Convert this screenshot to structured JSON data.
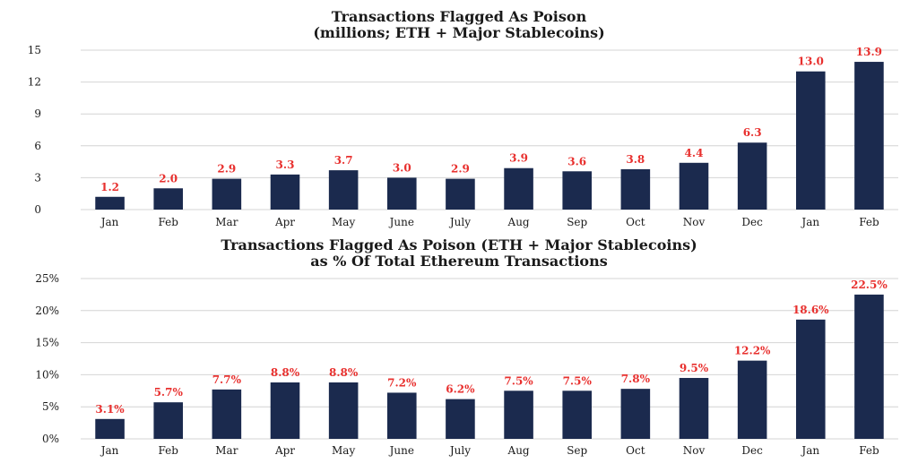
{
  "chart_data": [
    {
      "type": "bar",
      "title": "Transactions Flagged As Poison",
      "subtitle": "(millions; ETH + Major Stablecoins)",
      "categories": [
        "Jan",
        "Feb",
        "Mar",
        "Apr",
        "May",
        "June",
        "July",
        "Aug",
        "Sep",
        "Oct",
        "Nov",
        "Dec",
        "Jan",
        "Feb"
      ],
      "values": [
        1.2,
        2.0,
        2.9,
        3.3,
        3.7,
        3.0,
        2.9,
        3.9,
        3.6,
        3.8,
        4.4,
        6.3,
        13.0,
        13.9
      ],
      "data_labels": [
        "1.2",
        "2.0",
        "2.9",
        "3.3",
        "3.7",
        "3.0",
        "2.9",
        "3.9",
        "3.6",
        "3.8",
        "4.4",
        "6.3",
        "13.0",
        "13.9"
      ],
      "yticks": [
        "0",
        "3",
        "6",
        "9",
        "12",
        "15"
      ],
      "ylim": [
        0,
        15
      ],
      "grid": true,
      "colors": {
        "bar": "#1b2a4e",
        "label": "#e8302e"
      }
    },
    {
      "type": "bar",
      "title": "Transactions Flagged As Poison (ETH + Major Stablecoins)",
      "subtitle": "as % Of Total Ethereum Transactions",
      "categories": [
        "Jan",
        "Feb",
        "Mar",
        "Apr",
        "May",
        "June",
        "July",
        "Aug",
        "Sep",
        "Oct",
        "Nov",
        "Dec",
        "Jan",
        "Feb"
      ],
      "values": [
        3.1,
        5.7,
        7.7,
        8.8,
        8.8,
        7.2,
        6.2,
        7.5,
        7.5,
        7.8,
        9.5,
        12.2,
        18.6,
        22.5
      ],
      "data_labels": [
        "3.1%",
        "5.7%",
        "7.7%",
        "8.8%",
        "8.8%",
        "7.2%",
        "6.2%",
        "7.5%",
        "7.5%",
        "7.8%",
        "9.5%",
        "12.2%",
        "18.6%",
        "22.5%"
      ],
      "yticks": [
        "0%",
        "5%",
        "10%",
        "15%",
        "20%",
        "25%"
      ],
      "ylim": [
        0,
        25
      ],
      "grid": true,
      "colors": {
        "bar": "#1b2a4e",
        "label": "#e8302e"
      }
    }
  ]
}
